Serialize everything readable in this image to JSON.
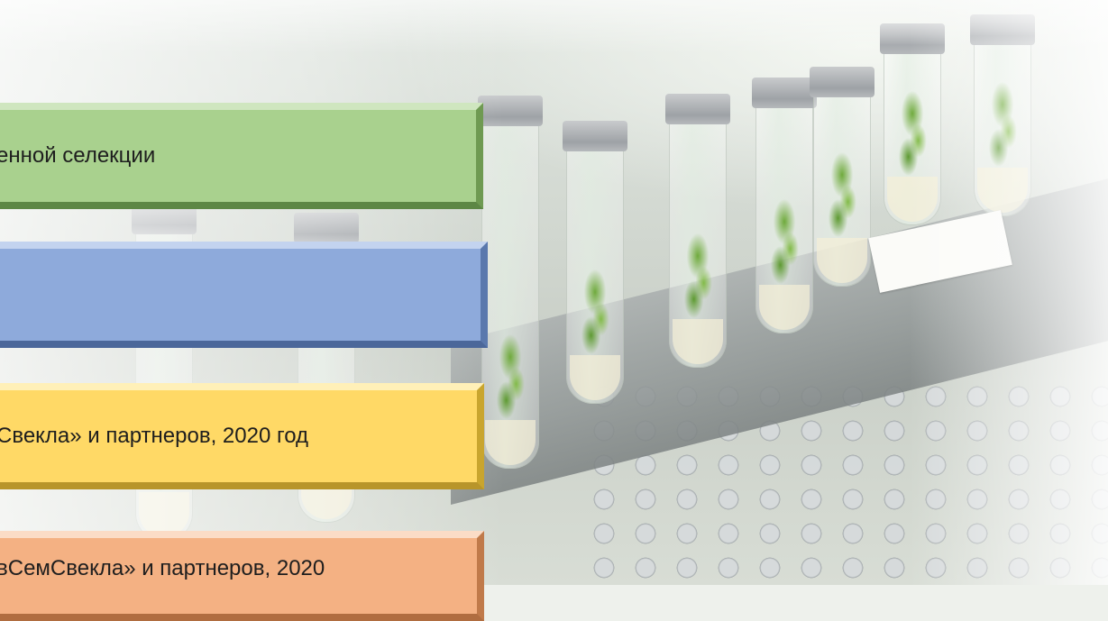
{
  "banners": [
    {
      "text": "енной селекции",
      "color": "#a9d18e"
    },
    {
      "text": "",
      "color": "#8eaadb"
    },
    {
      "text": "Свекла» и партнеров, 2020 год",
      "color": "#ffd966"
    },
    {
      "text": "вСемСвекла» и партнеров, 2020",
      "color": "#f4b183"
    }
  ],
  "background": {
    "description_icon": "lab-test-tubes-photo-icon"
  }
}
